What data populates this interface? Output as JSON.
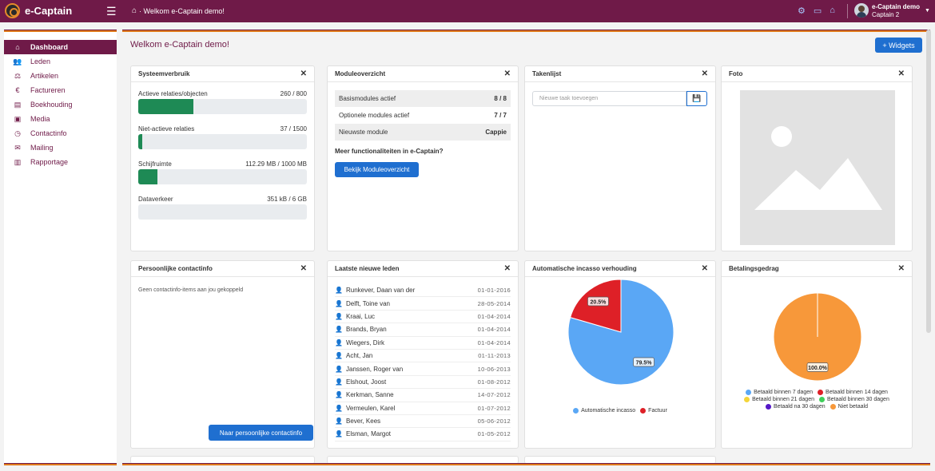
{
  "topbar": {
    "logo_text": "e-Captain",
    "breadcrumb": "· Welkom e-Captain demo!",
    "user_name": "e-Captain demo",
    "user_sub": "Captain 2"
  },
  "sidebar": {
    "items": [
      {
        "label": "Dashboard",
        "icon": "home-icon",
        "glyph": "⌂"
      },
      {
        "label": "Leden",
        "icon": "users-icon",
        "glyph": "👥"
      },
      {
        "label": "Artikelen",
        "icon": "articles-icon",
        "glyph": "⚖"
      },
      {
        "label": "Factureren",
        "icon": "euro-icon",
        "glyph": "€"
      },
      {
        "label": "Boekhouding",
        "icon": "ledger-icon",
        "glyph": "▤"
      },
      {
        "label": "Media",
        "icon": "media-icon",
        "glyph": "▣"
      },
      {
        "label": "Contactinfo",
        "icon": "clock-icon",
        "glyph": "◷"
      },
      {
        "label": "Mailing",
        "icon": "mail-icon",
        "glyph": "✉"
      },
      {
        "label": "Rapportage",
        "icon": "report-icon",
        "glyph": "▥"
      }
    ]
  },
  "main": {
    "title": "Welkom e-Captain demo!",
    "widgets_button": "+ Widgets"
  },
  "systeem": {
    "title": "Systeemverbruik",
    "rows": [
      {
        "label": "Actieve relaties/objecten",
        "value": "260 / 800",
        "fraction": 0.325
      },
      {
        "label": "Niet-actieve relaties",
        "value": "37 / 1500",
        "fraction": 0.025
      },
      {
        "label": "Schijfruimte",
        "value": "112.29 MB / 1000 MB",
        "fraction": 0.112
      },
      {
        "label": "Dataverkeer",
        "value": "351 kB / 6 GB",
        "fraction": 0.0
      }
    ]
  },
  "modules": {
    "title": "Moduleoverzicht",
    "rows": [
      {
        "label": "Basismodules actief",
        "value": "8 / 8"
      },
      {
        "label": "Optionele modules actief",
        "value": "7 / 7"
      },
      {
        "label": "Nieuwste module",
        "value": "Cappie"
      }
    ],
    "question": "Meer functionaliteiten in e-Captain?",
    "button": "Bekijk Moduleoverzicht"
  },
  "taken": {
    "title": "Takenlijst",
    "placeholder": "Nieuwe taak toevoegen"
  },
  "foto": {
    "title": "Foto"
  },
  "contact": {
    "title": "Persoonlijke contactinfo",
    "empty": "Geen contactinfo-items aan jou gekoppeld",
    "button": "Naar persoonlijke contactinfo"
  },
  "leden": {
    "title": "Laatste nieuwe leden",
    "rows": [
      {
        "name": "Runkever, Daan van der",
        "date": "01-01-2016"
      },
      {
        "name": "Delft, Toine van",
        "date": "28-05-2014"
      },
      {
        "name": "Kraai, Luc",
        "date": "01-04-2014"
      },
      {
        "name": "Brands, Bryan",
        "date": "01-04-2014"
      },
      {
        "name": "Wiegers, Dirk",
        "date": "01-04-2014"
      },
      {
        "name": "Acht, Jan",
        "date": "01-11-2013"
      },
      {
        "name": "Janssen, Roger van",
        "date": "10-06-2013"
      },
      {
        "name": "Elshout, Joost",
        "date": "01-08-2012"
      },
      {
        "name": "Kerkman, Sanne",
        "date": "14-07-2012"
      },
      {
        "name": "Vermeulen, Karel",
        "date": "01-07-2012"
      },
      {
        "name": "Bever, Kees",
        "date": "05-06-2012"
      },
      {
        "name": "Elsman, Margot",
        "date": "01-05-2012"
      }
    ]
  },
  "incasso": {
    "title": "Automatische incasso verhouding",
    "chart_data": {
      "type": "pie",
      "slices": [
        {
          "name": "Automatische incasso",
          "value": 79.5,
          "label": "79.5%",
          "color": "#5aa7f5"
        },
        {
          "name": "Factuur",
          "value": 20.5,
          "label": "20.5%",
          "color": "#de2027"
        }
      ]
    }
  },
  "betaling": {
    "title": "Betalingsgedrag",
    "chart_data": {
      "type": "pie",
      "slices": [
        {
          "name": "Betaald binnen 7 dagen",
          "value": 0,
          "color": "#5aa7f5"
        },
        {
          "name": "Betaald binnen 14 dagen",
          "value": 0,
          "color": "#de2027"
        },
        {
          "name": "Betaald binnen 21 dagen",
          "value": 0,
          "color": "#f4d53a"
        },
        {
          "name": "Betaald binnen 30 dagen",
          "value": 0,
          "color": "#3fcf5a"
        },
        {
          "name": "Betaald na 30 dagen",
          "value": 0,
          "color": "#5518c8"
        },
        {
          "name": "Niet betaald",
          "value": 100,
          "label": "100.0%",
          "color": "#f7983a"
        }
      ]
    }
  }
}
